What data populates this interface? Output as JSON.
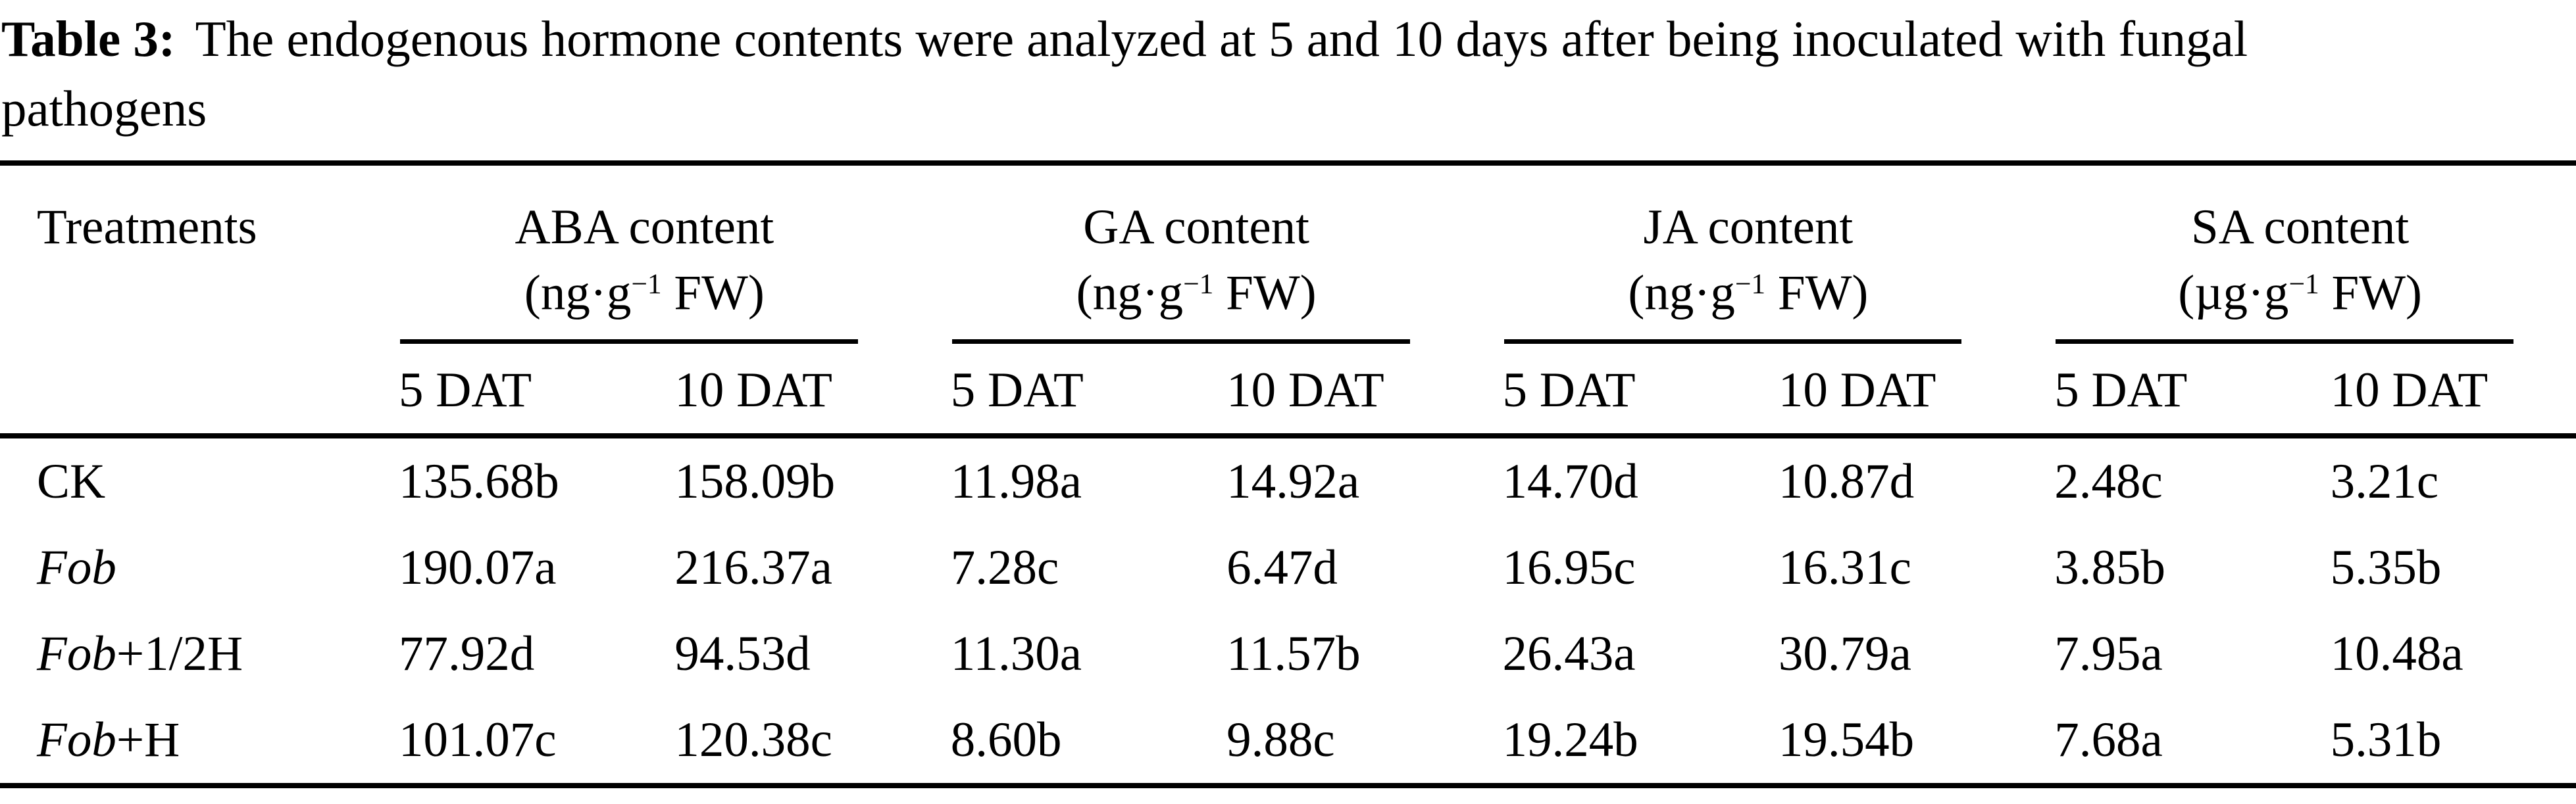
{
  "caption": {
    "label": "Table 3:",
    "line1": "The endogenous hormone contents were analyzed at 5 and 10 days after being inoculated with fungal",
    "line2": "pathogens"
  },
  "table": {
    "corner_header": "Treatments",
    "groups": [
      {
        "name": "ABA content",
        "unit_open": "(ng·g",
        "unit_sup": "−1",
        "unit_close": " FW)"
      },
      {
        "name": "GA content",
        "unit_open": "(ng·g",
        "unit_sup": "−1",
        "unit_close": " FW)"
      },
      {
        "name": "JA content",
        "unit_open": "(ng·g",
        "unit_sup": "−1",
        "unit_close": " FW)"
      },
      {
        "name": "SA content",
        "unit_open": "(µg·g",
        "unit_sup": "−1",
        "unit_close": " FW)"
      }
    ],
    "subheaders": [
      "5 DAT",
      "10 DAT",
      "5 DAT",
      "10 DAT",
      "5 DAT",
      "10 DAT",
      "5 DAT",
      "10 DAT"
    ],
    "rows": [
      {
        "treatment_italic": "",
        "treatment_roman": "CK",
        "values": [
          "135.68b",
          "158.09b",
          "11.98a",
          "14.92a",
          "14.70d",
          "10.87d",
          "2.48c",
          "3.21c"
        ]
      },
      {
        "treatment_italic": "Fob",
        "treatment_roman": "",
        "values": [
          "190.07a",
          "216.37a",
          "7.28c",
          "6.47d",
          "16.95c",
          "16.31c",
          "3.85b",
          "5.35b"
        ]
      },
      {
        "treatment_italic": "Fob",
        "treatment_roman": "+1/2H",
        "values": [
          "77.92d",
          "94.53d",
          "11.30a",
          "11.57b",
          "26.43a",
          "30.79a",
          "7.95a",
          "10.48a"
        ]
      },
      {
        "treatment_italic": "Fob",
        "treatment_roman": "+H",
        "values": [
          "101.07c",
          "120.38c",
          "8.60b",
          "9.88c",
          "19.24b",
          "19.54b",
          "7.68a",
          "5.31b"
        ]
      }
    ]
  },
  "colors": {
    "text": "#000000",
    "background": "#ffffff",
    "rule": "#000000"
  }
}
